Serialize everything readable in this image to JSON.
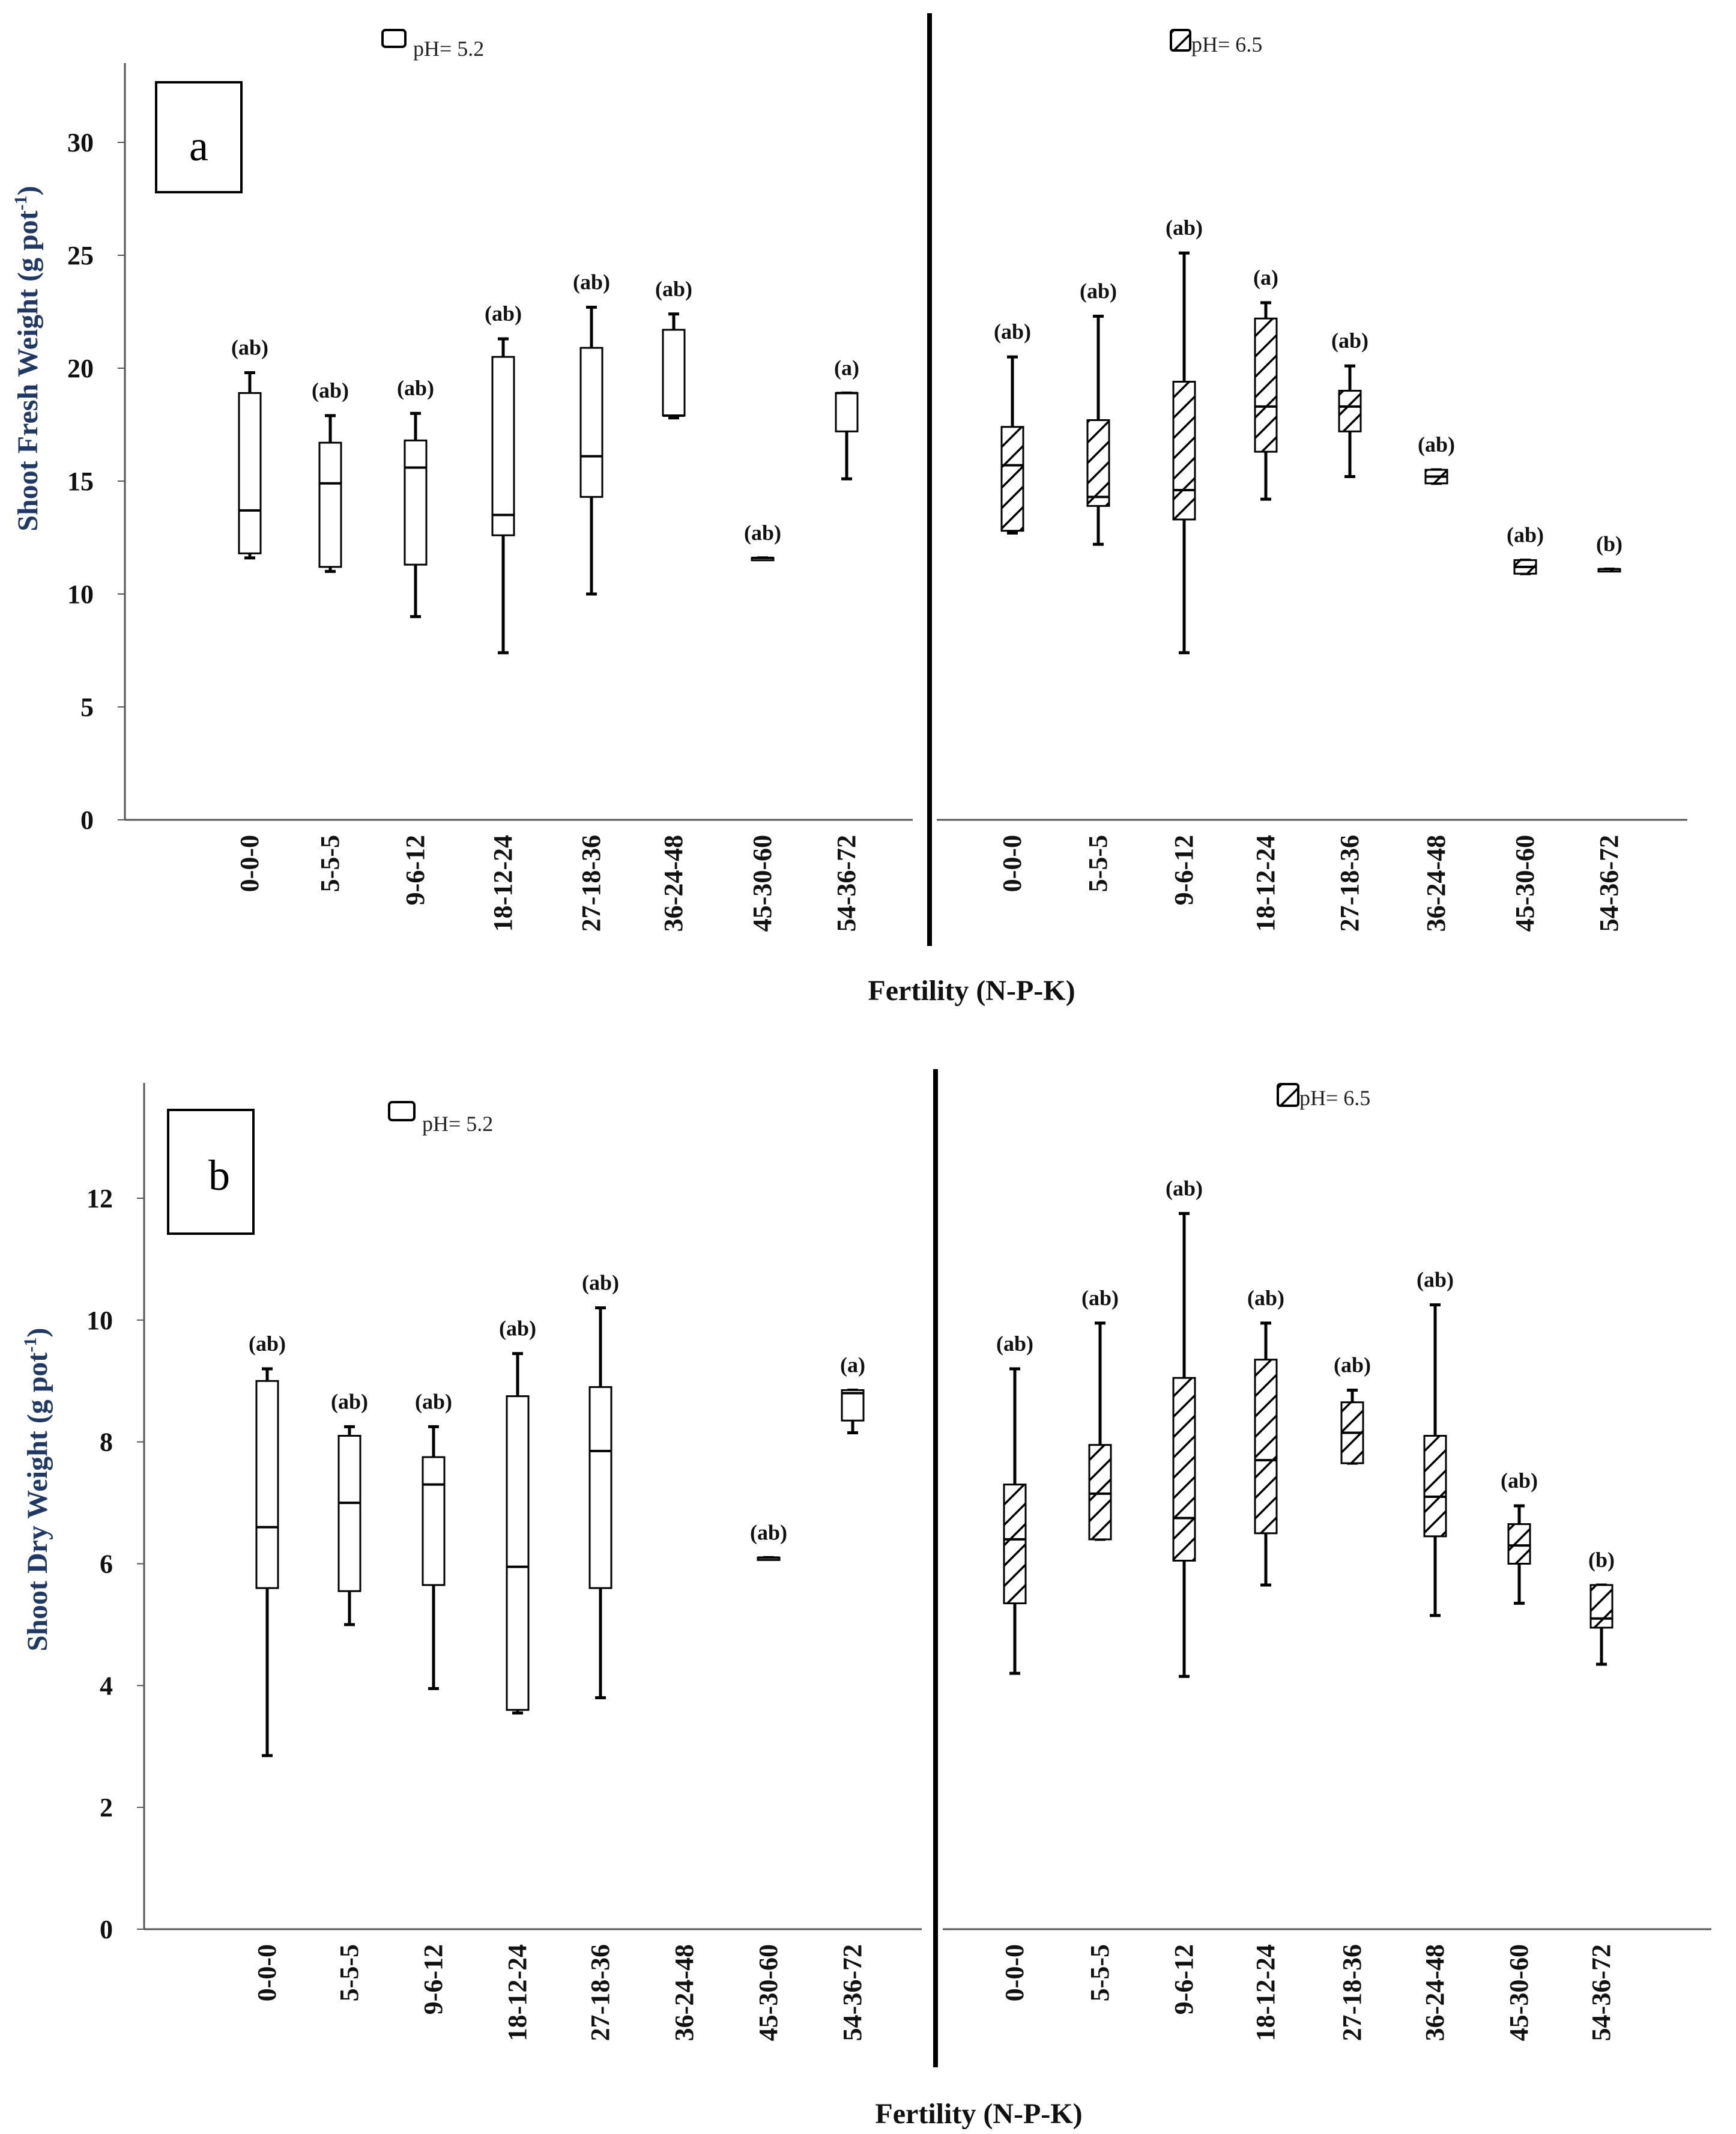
{
  "chart_data": [
    {
      "panel": "a",
      "type": "box",
      "ylabel": "Shoot Fresh Weight (g pot-1)",
      "ylabel_main": "Shoot Fresh Weight (g pot",
      "ylabel_sup": "-1",
      "ylabel_end": ")",
      "xlabel": "Fertility (N-P-K)",
      "ylim": [
        0,
        33
      ],
      "yticks": [
        0,
        5,
        10,
        15,
        20,
        25,
        30
      ],
      "groups": [
        {
          "legend": "pH= 5.2",
          "pattern": "plain",
          "categories": [
            "0-0-0",
            "5-5-5",
            "9-6-12",
            "18-12-24",
            "27-18-36",
            "36-24-48",
            "45-30-60",
            "54-36-72"
          ],
          "boxes": [
            {
              "min": 11.6,
              "q1": 11.8,
              "median": 13.7,
              "q3": 18.9,
              "max": 19.8,
              "letter": "(ab)"
            },
            {
              "min": 11.0,
              "q1": 11.2,
              "median": 14.9,
              "q3": 16.7,
              "max": 17.9,
              "letter": "(ab)"
            },
            {
              "min": 9.0,
              "q1": 11.3,
              "median": 15.6,
              "q3": 16.8,
              "max": 18.0,
              "letter": "(ab)"
            },
            {
              "min": 7.4,
              "q1": 12.6,
              "median": 13.5,
              "q3": 20.5,
              "max": 21.3,
              "letter": "(ab)"
            },
            {
              "min": 10.0,
              "q1": 14.3,
              "median": 16.1,
              "q3": 20.9,
              "max": 22.7,
              "letter": "(ab)"
            },
            {
              "min": 17.8,
              "q1": 17.9,
              "median": 17.9,
              "q3": 21.7,
              "max": 22.4,
              "letter": "(ab)"
            },
            {
              "min": 11.6,
              "q1": 11.6,
              "median": 11.6,
              "q3": 11.6,
              "max": 11.6,
              "letter": "(ab)"
            },
            {
              "min": 15.1,
              "q1": 17.2,
              "median": 18.9,
              "q3": 18.9,
              "max": 18.9,
              "letter": "(a)"
            }
          ]
        },
        {
          "legend": "pH= 6.5",
          "pattern": "hatched",
          "categories": [
            "0-0-0",
            "5-5-5",
            "9-6-12",
            "18-12-24",
            "27-18-36",
            "36-24-48",
            "45-30-60",
            "54-36-72"
          ],
          "boxes": [
            {
              "min": 12.7,
              "q1": 12.8,
              "median": 15.7,
              "q3": 17.4,
              "max": 20.5,
              "letter": "(ab)"
            },
            {
              "min": 12.2,
              "q1": 13.9,
              "median": 14.3,
              "q3": 17.7,
              "max": 22.3,
              "letter": "(ab)"
            },
            {
              "min": 7.4,
              "q1": 13.3,
              "median": 14.6,
              "q3": 19.4,
              "max": 25.1,
              "letter": "(ab)"
            },
            {
              "min": 14.2,
              "q1": 16.3,
              "median": 18.3,
              "q3": 22.2,
              "max": 22.9,
              "letter": "(a)"
            },
            {
              "min": 15.2,
              "q1": 17.2,
              "median": 18.3,
              "q3": 19.0,
              "max": 20.1,
              "letter": "(ab)"
            },
            {
              "min": 14.9,
              "q1": 14.9,
              "median": 15.2,
              "q3": 15.5,
              "max": 15.5,
              "letter": "(ab)"
            },
            {
              "min": 10.9,
              "q1": 10.9,
              "median": 11.2,
              "q3": 11.5,
              "max": 11.5,
              "letter": "(ab)"
            },
            {
              "min": 11.1,
              "q1": 11.1,
              "median": 11.1,
              "q3": 11.1,
              "max": 11.1,
              "letter": "(b)"
            }
          ]
        }
      ]
    },
    {
      "panel": "b",
      "type": "box",
      "ylabel": "Shoot Dry Weight (g pot-1)",
      "ylabel_main": "Shoot Dry Weight (g pot",
      "ylabel_sup": "-1",
      "ylabel_end": ")",
      "xlabel": "Fertility (N-P-K)",
      "ylim": [
        0,
        14
      ],
      "yticks": [
        0,
        2,
        4,
        6,
        8,
        10,
        12
      ],
      "groups": [
        {
          "legend": "pH= 5.2",
          "pattern": "plain",
          "categories": [
            "0-0-0",
            "5-5-5",
            "9-6-12",
            "18-12-24",
            "27-18-36",
            "36-24-48",
            "45-30-60",
            "54-36-72"
          ],
          "boxes": [
            {
              "min": 2.85,
              "q1": 5.6,
              "median": 6.6,
              "q3": 9.0,
              "max": 9.2,
              "letter": "(ab)"
            },
            {
              "min": 5.0,
              "q1": 5.55,
              "median": 7.0,
              "q3": 8.1,
              "max": 8.25,
              "letter": "(ab)"
            },
            {
              "min": 3.95,
              "q1": 5.65,
              "median": 7.3,
              "q3": 7.75,
              "max": 8.25,
              "letter": "(ab)"
            },
            {
              "min": 3.55,
              "q1": 3.6,
              "median": 5.95,
              "q3": 8.75,
              "max": 9.45,
              "letter": "(ab)"
            },
            {
              "min": 3.8,
              "q1": 5.6,
              "median": 7.85,
              "q3": 8.9,
              "max": 10.2,
              "letter": "(ab)"
            },
            null,
            {
              "min": 6.1,
              "q1": 6.1,
              "median": 6.1,
              "q3": 6.1,
              "max": 6.1,
              "letter": "(ab)"
            },
            {
              "min": 8.15,
              "q1": 8.35,
              "median": 8.8,
              "q3": 8.85,
              "max": 8.85,
              "letter": "(a)"
            }
          ]
        },
        {
          "legend": "pH= 6.5",
          "pattern": "hatched",
          "categories": [
            "0-0-0",
            "5-5-5",
            "9-6-12",
            "18-12-24",
            "27-18-36",
            "36-24-48",
            "45-30-60",
            "54-36-72"
          ],
          "boxes": [
            {
              "min": 4.2,
              "q1": 5.35,
              "median": 6.4,
              "q3": 7.3,
              "max": 9.2,
              "letter": "(ab)"
            },
            {
              "min": 6.4,
              "q1": 6.4,
              "median": 7.15,
              "q3": 7.95,
              "max": 9.95,
              "letter": "(ab)"
            },
            {
              "min": 4.15,
              "q1": 6.05,
              "median": 6.75,
              "q3": 9.05,
              "max": 11.75,
              "letter": "(ab)"
            },
            {
              "min": 5.65,
              "q1": 6.5,
              "median": 7.7,
              "q3": 9.35,
              "max": 9.95,
              "letter": "(ab)"
            },
            {
              "min": 7.65,
              "q1": 7.65,
              "median": 8.15,
              "q3": 8.65,
              "max": 8.85,
              "letter": "(ab)"
            },
            {
              "min": 5.15,
              "q1": 6.45,
              "median": 7.1,
              "q3": 8.1,
              "max": 10.25,
              "letter": "(ab)"
            },
            {
              "min": 5.35,
              "q1": 6.0,
              "median": 6.3,
              "q3": 6.65,
              "max": 6.95,
              "letter": "(ab)"
            },
            {
              "min": 4.35,
              "q1": 4.95,
              "median": 5.1,
              "q3": 5.65,
              "max": 5.65,
              "letter": "(b)"
            }
          ]
        }
      ]
    }
  ]
}
